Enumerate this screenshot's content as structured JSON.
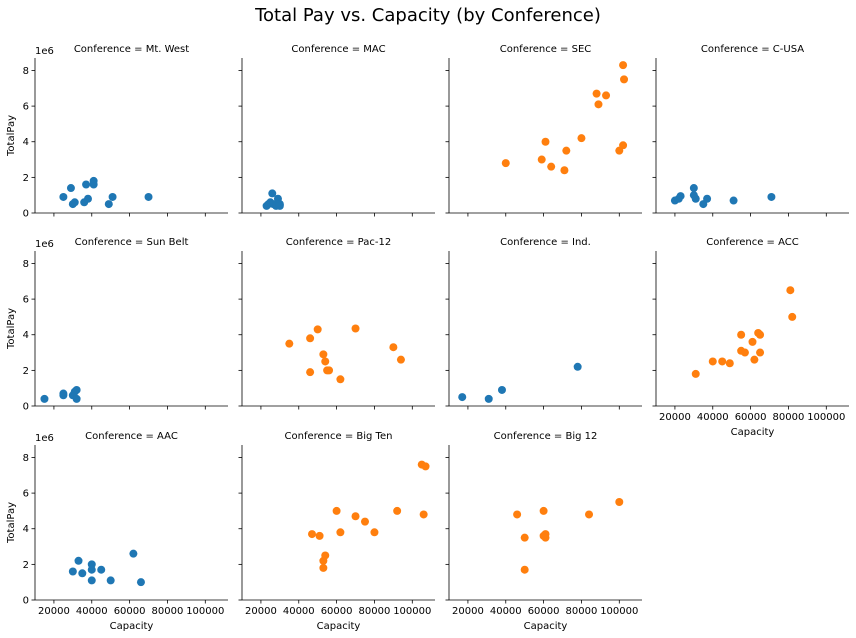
{
  "chart_data": {
    "type": "scatter",
    "title": "Total Pay vs. Capacity (by Conference)",
    "xlabel": "Capacity",
    "ylabel": "TotalPay",
    "y_offset_text": "1e6",
    "xlim": [
      10000,
      112000
    ],
    "ylim": [
      0,
      8700000
    ],
    "xticks": [
      20000,
      40000,
      60000,
      80000,
      100000
    ],
    "xtick_labels": [
      "20000",
      "40000",
      "60000",
      "80000",
      "100000"
    ],
    "yticks": [
      0,
      2000000,
      4000000,
      6000000,
      8000000
    ],
    "ytick_labels": [
      "0",
      "2",
      "4",
      "6",
      "8"
    ],
    "grid": false,
    "colors": {
      "blue": "#1f77b4",
      "orange": "#ff7f0e"
    },
    "facets": [
      {
        "title": "Conference = Mt. West",
        "row": 0,
        "col": 0,
        "points": [
          {
            "x": 25000,
            "y": 900000,
            "c": "blue"
          },
          {
            "x": 29000,
            "y": 1400000,
            "c": "blue"
          },
          {
            "x": 30000,
            "y": 500000,
            "c": "blue"
          },
          {
            "x": 31000,
            "y": 600000,
            "c": "blue"
          },
          {
            "x": 36000,
            "y": 600000,
            "c": "blue"
          },
          {
            "x": 37000,
            "y": 1600000,
            "c": "blue"
          },
          {
            "x": 38000,
            "y": 800000,
            "c": "blue"
          },
          {
            "x": 41000,
            "y": 1800000,
            "c": "blue"
          },
          {
            "x": 41000,
            "y": 1600000,
            "c": "blue"
          },
          {
            "x": 49000,
            "y": 500000,
            "c": "blue"
          },
          {
            "x": 51000,
            "y": 900000,
            "c": "blue"
          },
          {
            "x": 70000,
            "y": 900000,
            "c": "blue"
          }
        ]
      },
      {
        "title": "Conference = MAC",
        "row": 0,
        "col": 1,
        "points": [
          {
            "x": 23000,
            "y": 400000,
            "c": "blue"
          },
          {
            "x": 24000,
            "y": 500000,
            "c": "blue"
          },
          {
            "x": 25000,
            "y": 600000,
            "c": "blue"
          },
          {
            "x": 26000,
            "y": 1100000,
            "c": "blue"
          },
          {
            "x": 26500,
            "y": 500000,
            "c": "blue"
          },
          {
            "x": 28000,
            "y": 400000,
            "c": "blue"
          },
          {
            "x": 29000,
            "y": 800000,
            "c": "blue"
          },
          {
            "x": 30000,
            "y": 500000,
            "c": "blue"
          },
          {
            "x": 30000,
            "y": 400000,
            "c": "blue"
          }
        ]
      },
      {
        "title": "Conference = SEC",
        "row": 0,
        "col": 2,
        "points": [
          {
            "x": 40000,
            "y": 2800000,
            "c": "orange"
          },
          {
            "x": 59000,
            "y": 3000000,
            "c": "orange"
          },
          {
            "x": 61000,
            "y": 4000000,
            "c": "orange"
          },
          {
            "x": 64000,
            "y": 2600000,
            "c": "orange"
          },
          {
            "x": 71000,
            "y": 2400000,
            "c": "orange"
          },
          {
            "x": 72000,
            "y": 3500000,
            "c": "orange"
          },
          {
            "x": 80000,
            "y": 4200000,
            "c": "orange"
          },
          {
            "x": 88000,
            "y": 6700000,
            "c": "orange"
          },
          {
            "x": 89000,
            "y": 6100000,
            "c": "orange"
          },
          {
            "x": 93000,
            "y": 6600000,
            "c": "orange"
          },
          {
            "x": 100000,
            "y": 3500000,
            "c": "orange"
          },
          {
            "x": 102000,
            "y": 3800000,
            "c": "orange"
          },
          {
            "x": 102000,
            "y": 8300000,
            "c": "orange"
          },
          {
            "x": 102500,
            "y": 7500000,
            "c": "orange"
          }
        ]
      },
      {
        "title": "Conference = C-USA",
        "row": 0,
        "col": 3,
        "points": [
          {
            "x": 20000,
            "y": 700000,
            "c": "blue"
          },
          {
            "x": 22000,
            "y": 800000,
            "c": "blue"
          },
          {
            "x": 23000,
            "y": 950000,
            "c": "blue"
          },
          {
            "x": 30000,
            "y": 1000000,
            "c": "blue"
          },
          {
            "x": 30000,
            "y": 1400000,
            "c": "blue"
          },
          {
            "x": 31000,
            "y": 800000,
            "c": "blue"
          },
          {
            "x": 35000,
            "y": 500000,
            "c": "blue"
          },
          {
            "x": 37000,
            "y": 800000,
            "c": "blue"
          },
          {
            "x": 51000,
            "y": 700000,
            "c": "blue"
          },
          {
            "x": 71000,
            "y": 900000,
            "c": "blue"
          }
        ]
      },
      {
        "title": "Conference = Sun Belt",
        "row": 1,
        "col": 0,
        "points": [
          {
            "x": 15000,
            "y": 400000,
            "c": "blue"
          },
          {
            "x": 25000,
            "y": 600000,
            "c": "blue"
          },
          {
            "x": 25000,
            "y": 700000,
            "c": "blue"
          },
          {
            "x": 30000,
            "y": 600000,
            "c": "blue"
          },
          {
            "x": 31000,
            "y": 800000,
            "c": "blue"
          },
          {
            "x": 32000,
            "y": 900000,
            "c": "blue"
          },
          {
            "x": 32000,
            "y": 400000,
            "c": "blue"
          }
        ]
      },
      {
        "title": "Conference = Pac-12",
        "row": 1,
        "col": 1,
        "points": [
          {
            "x": 35000,
            "y": 3500000,
            "c": "orange"
          },
          {
            "x": 46000,
            "y": 3800000,
            "c": "orange"
          },
          {
            "x": 46000,
            "y": 1900000,
            "c": "orange"
          },
          {
            "x": 50000,
            "y": 4300000,
            "c": "orange"
          },
          {
            "x": 53000,
            "y": 2900000,
            "c": "orange"
          },
          {
            "x": 54000,
            "y": 2500000,
            "c": "orange"
          },
          {
            "x": 55000,
            "y": 2000000,
            "c": "orange"
          },
          {
            "x": 56000,
            "y": 2000000,
            "c": "orange"
          },
          {
            "x": 62000,
            "y": 1500000,
            "c": "orange"
          },
          {
            "x": 70000,
            "y": 4350000,
            "c": "orange"
          },
          {
            "x": 90000,
            "y": 3300000,
            "c": "orange"
          },
          {
            "x": 94000,
            "y": 2600000,
            "c": "orange"
          }
        ]
      },
      {
        "title": "Conference = Ind.",
        "row": 1,
        "col": 2,
        "points": [
          {
            "x": 17000,
            "y": 500000,
            "c": "blue"
          },
          {
            "x": 31000,
            "y": 400000,
            "c": "blue"
          },
          {
            "x": 38000,
            "y": 900000,
            "c": "blue"
          },
          {
            "x": 78000,
            "y": 2200000,
            "c": "blue"
          }
        ]
      },
      {
        "title": "Conference = ACC",
        "row": 1,
        "col": 3,
        "points": [
          {
            "x": 31000,
            "y": 1800000,
            "c": "orange"
          },
          {
            "x": 40000,
            "y": 2500000,
            "c": "orange"
          },
          {
            "x": 45000,
            "y": 2500000,
            "c": "orange"
          },
          {
            "x": 49000,
            "y": 2400000,
            "c": "orange"
          },
          {
            "x": 55000,
            "y": 3100000,
            "c": "orange"
          },
          {
            "x": 55000,
            "y": 4000000,
            "c": "orange"
          },
          {
            "x": 57000,
            "y": 3000000,
            "c": "orange"
          },
          {
            "x": 61000,
            "y": 3600000,
            "c": "orange"
          },
          {
            "x": 62000,
            "y": 2600000,
            "c": "orange"
          },
          {
            "x": 64000,
            "y": 4100000,
            "c": "orange"
          },
          {
            "x": 65000,
            "y": 4000000,
            "c": "orange"
          },
          {
            "x": 65000,
            "y": 3000000,
            "c": "orange"
          },
          {
            "x": 81000,
            "y": 6500000,
            "c": "orange"
          },
          {
            "x": 82000,
            "y": 5000000,
            "c": "orange"
          }
        ]
      },
      {
        "title": "Conference = AAC",
        "row": 2,
        "col": 0,
        "points": [
          {
            "x": 30000,
            "y": 1600000,
            "c": "blue"
          },
          {
            "x": 33000,
            "y": 2200000,
            "c": "blue"
          },
          {
            "x": 35000,
            "y": 1500000,
            "c": "blue"
          },
          {
            "x": 40000,
            "y": 2000000,
            "c": "blue"
          },
          {
            "x": 40000,
            "y": 1700000,
            "c": "blue"
          },
          {
            "x": 40000,
            "y": 1100000,
            "c": "blue"
          },
          {
            "x": 45000,
            "y": 1700000,
            "c": "blue"
          },
          {
            "x": 50000,
            "y": 1100000,
            "c": "blue"
          },
          {
            "x": 62000,
            "y": 2600000,
            "c": "blue"
          },
          {
            "x": 66000,
            "y": 1000000,
            "c": "blue"
          }
        ]
      },
      {
        "title": "Conference = Big Ten",
        "row": 2,
        "col": 1,
        "points": [
          {
            "x": 47000,
            "y": 3700000,
            "c": "orange"
          },
          {
            "x": 51000,
            "y": 3600000,
            "c": "orange"
          },
          {
            "x": 53000,
            "y": 2200000,
            "c": "orange"
          },
          {
            "x": 53000,
            "y": 1800000,
            "c": "orange"
          },
          {
            "x": 54000,
            "y": 2500000,
            "c": "orange"
          },
          {
            "x": 60000,
            "y": 5000000,
            "c": "orange"
          },
          {
            "x": 62000,
            "y": 3800000,
            "c": "orange"
          },
          {
            "x": 70000,
            "y": 4700000,
            "c": "orange"
          },
          {
            "x": 75000,
            "y": 4400000,
            "c": "orange"
          },
          {
            "x": 80000,
            "y": 3800000,
            "c": "orange"
          },
          {
            "x": 92000,
            "y": 5000000,
            "c": "orange"
          },
          {
            "x": 105000,
            "y": 7600000,
            "c": "orange"
          },
          {
            "x": 107000,
            "y": 7500000,
            "c": "orange"
          },
          {
            "x": 106000,
            "y": 4800000,
            "c": "orange"
          }
        ]
      },
      {
        "title": "Conference = Big 12",
        "row": 2,
        "col": 2,
        "points": [
          {
            "x": 46000,
            "y": 4800000,
            "c": "orange"
          },
          {
            "x": 50000,
            "y": 3500000,
            "c": "orange"
          },
          {
            "x": 50000,
            "y": 1700000,
            "c": "orange"
          },
          {
            "x": 60000,
            "y": 3600000,
            "c": "orange"
          },
          {
            "x": 60000,
            "y": 5000000,
            "c": "orange"
          },
          {
            "x": 61000,
            "y": 3700000,
            "c": "orange"
          },
          {
            "x": 61000,
            "y": 3500000,
            "c": "orange"
          },
          {
            "x": 84000,
            "y": 4800000,
            "c": "orange"
          },
          {
            "x": 100000,
            "y": 5500000,
            "c": "orange"
          }
        ]
      }
    ]
  }
}
